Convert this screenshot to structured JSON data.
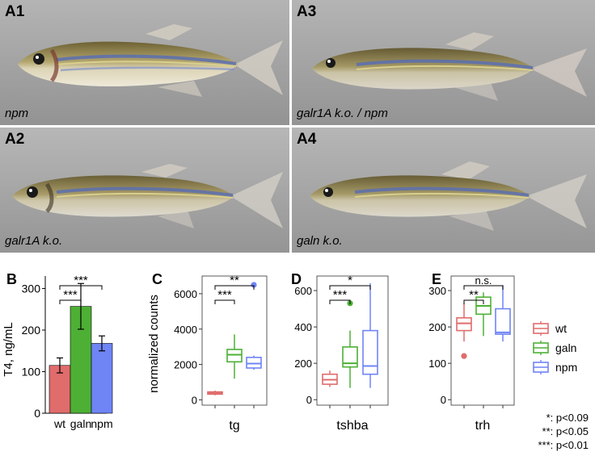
{
  "panels": {
    "a1": {
      "label": "A1",
      "caption": "npm"
    },
    "a2": {
      "label": "A2",
      "caption": "galr1A k.o."
    },
    "a3": {
      "label": "A3",
      "caption": "galr1A k.o. / npm"
    },
    "a4": {
      "label": "A4",
      "caption": "galn k.o."
    }
  },
  "colors": {
    "wt": "#e06c6c",
    "galn": "#4db035",
    "npm": "#6f84f5"
  },
  "chart_data": [
    {
      "panel": "B",
      "type": "bar",
      "ylabel": "T4, ng/mL",
      "categories": [
        "wt",
        "galn",
        "npm"
      ],
      "values": [
        115,
        257,
        168
      ],
      "errors": [
        18,
        55,
        18
      ],
      "ylim": [
        0,
        330
      ],
      "yticks": [
        0,
        100,
        200,
        300
      ],
      "significance": [
        {
          "from": "wt",
          "to": "galn",
          "text": "***"
        },
        {
          "from": "wt",
          "to": "npm",
          "text": "***"
        }
      ]
    },
    {
      "panel": "C",
      "type": "box",
      "ylabel": "normalized counts",
      "xlabel": "tg",
      "ylim": [
        -300,
        7000
      ],
      "yticks": [
        0,
        2000,
        4000,
        6000
      ],
      "boxes": [
        {
          "group": "wt",
          "min": 260,
          "q1": 320,
          "median": 380,
          "q3": 450,
          "max": 520,
          "outliers": []
        },
        {
          "group": "galn",
          "min": 1200,
          "q1": 2150,
          "median": 2550,
          "q3": 2850,
          "max": 3700,
          "outliers": []
        },
        {
          "group": "npm",
          "min": 1700,
          "q1": 1800,
          "median": 2050,
          "q3": 2400,
          "max": 2500,
          "outliers": [
            6500
          ]
        }
      ],
      "significance": [
        {
          "from": "wt",
          "to": "galn",
          "text": "***"
        },
        {
          "from": "wt",
          "to": "npm",
          "text": "**"
        }
      ]
    },
    {
      "panel": "D",
      "type": "box",
      "xlabel": "tshba",
      "ylim": [
        -30,
        680
      ],
      "yticks": [
        0,
        200,
        400,
        600
      ],
      "boxes": [
        {
          "group": "wt",
          "min": 70,
          "q1": 85,
          "median": 110,
          "q3": 140,
          "max": 160,
          "outliers": []
        },
        {
          "group": "galn",
          "min": 65,
          "q1": 180,
          "median": 200,
          "q3": 290,
          "max": 380,
          "outliers": [
            530
          ]
        },
        {
          "group": "npm",
          "min": 65,
          "q1": 140,
          "median": 185,
          "q3": 380,
          "max": 640,
          "outliers": []
        }
      ],
      "significance": [
        {
          "from": "wt",
          "to": "galn",
          "text": "***"
        },
        {
          "from": "wt",
          "to": "npm",
          "text": "*"
        }
      ]
    },
    {
      "panel": "E",
      "type": "box",
      "xlabel": "trh",
      "ylim": [
        -15,
        340
      ],
      "yticks": [
        0,
        100,
        200,
        300
      ],
      "boxes": [
        {
          "group": "wt",
          "min": 160,
          "q1": 190,
          "median": 210,
          "q3": 225,
          "max": 265,
          "outliers": [
            120
          ]
        },
        {
          "group": "galn",
          "min": 175,
          "q1": 235,
          "median": 258,
          "q3": 282,
          "max": 295,
          "outliers": []
        },
        {
          "group": "npm",
          "min": 160,
          "q1": 180,
          "median": 185,
          "q3": 250,
          "max": 315,
          "outliers": []
        }
      ],
      "significance": [
        {
          "from": "wt",
          "to": "galn",
          "text": "**"
        },
        {
          "from": "wt",
          "to": "npm",
          "text": "n.s."
        }
      ]
    }
  ],
  "legend": [
    {
      "group": "wt",
      "label": "wt"
    },
    {
      "group": "galn",
      "label": "galn"
    },
    {
      "group": "npm",
      "label": "npm"
    }
  ],
  "notes": [
    "*: p<0.09",
    "**: p<0.05",
    "***: p<0.01"
  ]
}
